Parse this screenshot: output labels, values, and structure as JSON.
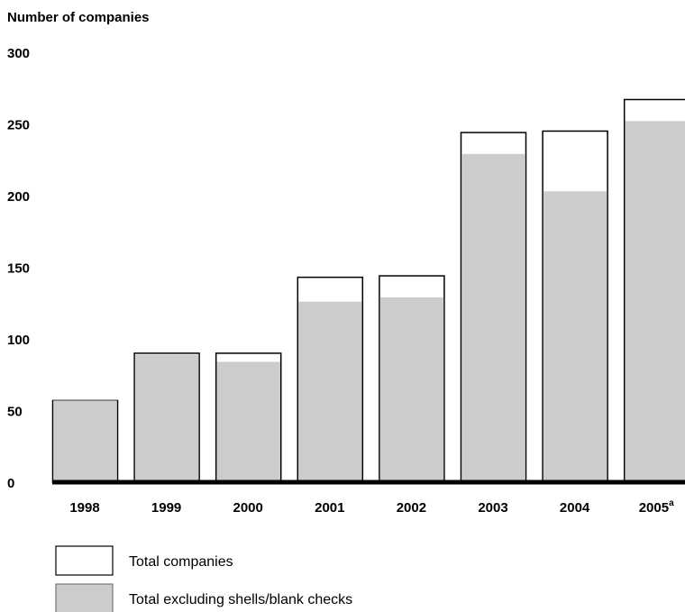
{
  "chart_data": {
    "type": "bar",
    "ylabel": "Number of companies",
    "xlabel": "",
    "ylim": [
      0,
      300
    ],
    "yticks": [
      "0",
      "50",
      "100",
      "150",
      "200",
      "250",
      "300"
    ],
    "categories": [
      "1998",
      "1999",
      "2000",
      "2001",
      "2002",
      "2003",
      "2004",
      "2005"
    ],
    "category_superscripts": [
      "",
      "",
      "",
      "",
      "",
      "",
      "",
      "a"
    ],
    "series": [
      {
        "name": "Total companies",
        "values": [
          57,
          90,
          90,
          143,
          144,
          244,
          245,
          267
        ],
        "color": "#ffffff"
      },
      {
        "name": "Total excluding shells/blank checks",
        "values": [
          57,
          89,
          84,
          126,
          129,
          229,
          203,
          252
        ],
        "color": "#cccccc"
      }
    ],
    "bar_style": "overlapping",
    "legend_position": "bottom-left",
    "grid": false
  },
  "colors": {
    "outline": "#000000",
    "fill_total": "#ffffff",
    "fill_excluding": "#cccccc"
  }
}
